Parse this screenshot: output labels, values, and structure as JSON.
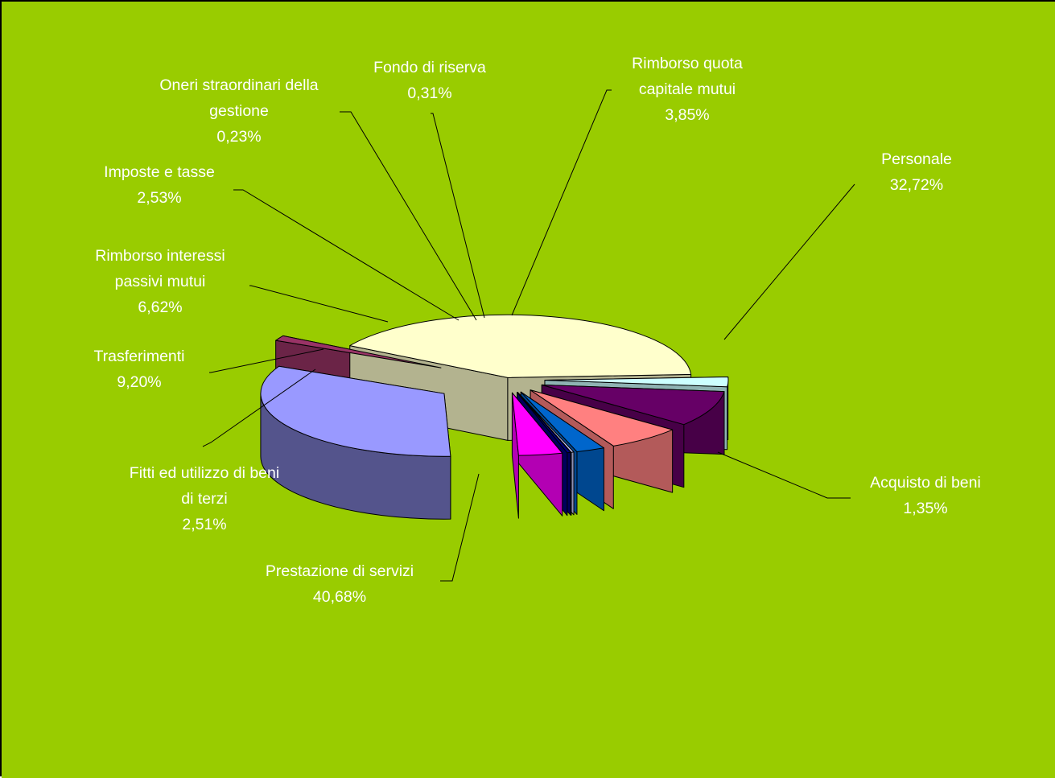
{
  "chart_data": {
    "type": "pie",
    "three_d": true,
    "exploded": true,
    "legend": "none",
    "background_color": "#99CC00",
    "label_color": "#FFFFFF",
    "slices": [
      {
        "id": "personale",
        "lines": [
          "Personale"
        ],
        "label": "Personale",
        "value": 32.72,
        "value_label": "32,72%",
        "color": "#9999FF"
      },
      {
        "id": "acquisto",
        "lines": [
          "Acquisto di beni"
        ],
        "label": "Acquisto di beni",
        "value": 1.35,
        "value_label": "1,35%",
        "color": "#993366"
      },
      {
        "id": "prestazione",
        "lines": [
          "Prestazione di servizi"
        ],
        "label": "Prestazione di servizi",
        "value": 40.68,
        "value_label": "40,68%",
        "color": "#FFFFCC"
      },
      {
        "id": "fitti",
        "lines": [
          "Fitti ed utilizzo di beni",
          "di terzi"
        ],
        "label": "Fitti ed utilizzo di beni di terzi",
        "value": 2.51,
        "value_label": "2,51%",
        "color": "#CCFFFF"
      },
      {
        "id": "trasferimenti",
        "lines": [
          "Trasferimenti"
        ],
        "label": "Trasferimenti",
        "value": 9.2,
        "value_label": "9,20%",
        "color": "#660066"
      },
      {
        "id": "interessi",
        "lines": [
          "Rimborso interessi",
          "passivi mutui"
        ],
        "label": "Rimborso interessi passivi mutui",
        "value": 6.62,
        "value_label": "6,62%",
        "color": "#FF8080"
      },
      {
        "id": "imposte",
        "lines": [
          "Imposte e tasse"
        ],
        "label": "Imposte e tasse",
        "value": 2.53,
        "value_label": "2,53%",
        "color": "#0066CC"
      },
      {
        "id": "oneri",
        "lines": [
          "Oneri straordinari della",
          "gestione"
        ],
        "label": "Oneri straordinari della gestione",
        "value": 0.23,
        "value_label": "0,23%",
        "color": "#CCCCFF"
      },
      {
        "id": "fondo",
        "lines": [
          "Fondo di riserva"
        ],
        "label": "Fondo di riserva",
        "value": 0.31,
        "value_label": "0,31%",
        "color": "#000080"
      },
      {
        "id": "rimborso-quota",
        "lines": [
          "Rimborso quota",
          "capitale mutui"
        ],
        "label": "Rimborso quota capitale mutui",
        "value": 3.85,
        "value_label": "3,85%",
        "color": "#FF00FF"
      }
    ]
  }
}
